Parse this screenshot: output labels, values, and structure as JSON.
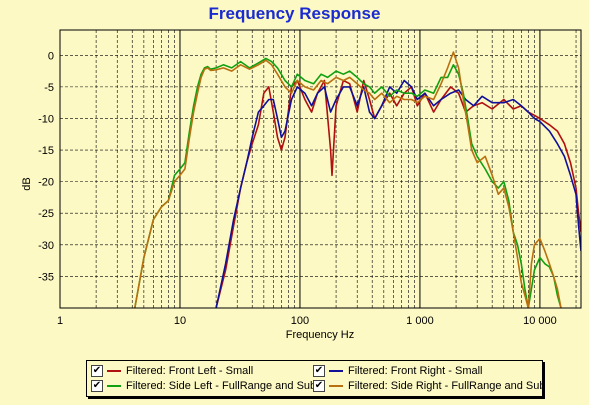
{
  "chart_data": {
    "type": "line",
    "title": "Frequency Response",
    "xlabel": "Frequency Hz",
    "ylabel": "dB",
    "xscale": "log",
    "xlim": [
      1,
      22000
    ],
    "ylim": [
      -40,
      4
    ],
    "xticks": [
      {
        "value": 1,
        "label": "1"
      },
      {
        "value": 10,
        "label": "10"
      },
      {
        "value": 100,
        "label": "100"
      },
      {
        "value": 1000,
        "label": "1 000"
      },
      {
        "value": 10000,
        "label": "10 000"
      }
    ],
    "yticks": [
      {
        "value": 0,
        "label": "0"
      },
      {
        "value": -5,
        "label": "-5"
      },
      {
        "value": -10,
        "label": "-10"
      },
      {
        "value": -15,
        "label": "-15"
      },
      {
        "value": -20,
        "label": "-20"
      },
      {
        "value": -25,
        "label": "-25"
      },
      {
        "value": -30,
        "label": "-30"
      },
      {
        "value": -35,
        "label": "-35"
      }
    ],
    "grid": true,
    "legend_position": "bottom",
    "series": [
      {
        "name": "Filtered: Front Left - Small",
        "color": "#b01010",
        "checked": true,
        "points": [
          [
            20,
            -40
          ],
          [
            24,
            -34
          ],
          [
            28,
            -27
          ],
          [
            32,
            -21
          ],
          [
            36,
            -17
          ],
          [
            40,
            -14
          ],
          [
            45,
            -11
          ],
          [
            50,
            -6
          ],
          [
            55,
            -5
          ],
          [
            60,
            -9
          ],
          [
            65,
            -13
          ],
          [
            70,
            -15
          ],
          [
            75,
            -13
          ],
          [
            85,
            -5
          ],
          [
            95,
            -4
          ],
          [
            110,
            -7
          ],
          [
            125,
            -9
          ],
          [
            140,
            -6
          ],
          [
            160,
            -4
          ],
          [
            180,
            -15
          ],
          [
            185,
            -19
          ],
          [
            200,
            -8
          ],
          [
            230,
            -4
          ],
          [
            260,
            -4.5
          ],
          [
            300,
            -9
          ],
          [
            340,
            -4
          ],
          [
            380,
            -7
          ],
          [
            420,
            -10
          ],
          [
            480,
            -8
          ],
          [
            560,
            -6
          ],
          [
            640,
            -8
          ],
          [
            740,
            -6
          ],
          [
            850,
            -5
          ],
          [
            950,
            -8
          ],
          [
            1100,
            -6
          ],
          [
            1300,
            -9
          ],
          [
            1500,
            -7
          ],
          [
            1800,
            -5
          ],
          [
            2100,
            -6
          ],
          [
            2400,
            -9
          ],
          [
            2800,
            -8
          ],
          [
            3300,
            -7.5
          ],
          [
            4000,
            -8.5
          ],
          [
            5000,
            -7
          ],
          [
            6000,
            -8.5
          ],
          [
            7000,
            -8
          ],
          [
            8000,
            -9
          ],
          [
            9000,
            -9.5
          ],
          [
            10000,
            -10
          ],
          [
            12000,
            -11
          ],
          [
            14000,
            -12
          ],
          [
            16000,
            -14
          ],
          [
            18000,
            -17
          ],
          [
            20000,
            -21
          ],
          [
            21000,
            -25
          ],
          [
            22000,
            -28
          ]
        ]
      },
      {
        "name": "Filtered: Front Right - Small",
        "color": "#10109a",
        "checked": true,
        "points": [
          [
            20,
            -40
          ],
          [
            24,
            -33
          ],
          [
            28,
            -26
          ],
          [
            32,
            -21
          ],
          [
            36,
            -17
          ],
          [
            40,
            -13
          ],
          [
            45,
            -9
          ],
          [
            50,
            -8
          ],
          [
            55,
            -7
          ],
          [
            60,
            -7
          ],
          [
            65,
            -10
          ],
          [
            70,
            -13
          ],
          [
            75,
            -12
          ],
          [
            85,
            -7
          ],
          [
            95,
            -5
          ],
          [
            110,
            -6
          ],
          [
            125,
            -8
          ],
          [
            140,
            -6
          ],
          [
            160,
            -5
          ],
          [
            180,
            -9
          ],
          [
            200,
            -7
          ],
          [
            230,
            -5
          ],
          [
            260,
            -5
          ],
          [
            300,
            -8
          ],
          [
            340,
            -5
          ],
          [
            380,
            -9
          ],
          [
            420,
            -10
          ],
          [
            480,
            -8
          ],
          [
            560,
            -5
          ],
          [
            640,
            -6
          ],
          [
            740,
            -4
          ],
          [
            850,
            -5
          ],
          [
            950,
            -7
          ],
          [
            1100,
            -6
          ],
          [
            1300,
            -8
          ],
          [
            1500,
            -7
          ],
          [
            1800,
            -6
          ],
          [
            2100,
            -5.5
          ],
          [
            2400,
            -7
          ],
          [
            2800,
            -8
          ],
          [
            3300,
            -6.5
          ],
          [
            4000,
            -7.5
          ],
          [
            5000,
            -7.5
          ],
          [
            6000,
            -7
          ],
          [
            7000,
            -8
          ],
          [
            8000,
            -9
          ],
          [
            9000,
            -10
          ],
          [
            10000,
            -10.5
          ],
          [
            12000,
            -12
          ],
          [
            14000,
            -14
          ],
          [
            16000,
            -16
          ],
          [
            18000,
            -19
          ],
          [
            20000,
            -22
          ],
          [
            21000,
            -27
          ],
          [
            22000,
            -31
          ]
        ]
      },
      {
        "name": "Filtered: Side Left - FullRange and Sub",
        "color": "#12a012",
        "checked": true,
        "points": [
          [
            4.2,
            -40
          ],
          [
            5,
            -32
          ],
          [
            6,
            -26
          ],
          [
            7,
            -24
          ],
          [
            8,
            -23
          ],
          [
            9,
            -19
          ],
          [
            10,
            -18
          ],
          [
            11,
            -17
          ],
          [
            12,
            -12
          ],
          [
            13,
            -8
          ],
          [
            14,
            -5
          ],
          [
            15,
            -3
          ],
          [
            16,
            -2
          ],
          [
            17,
            -1.8
          ],
          [
            18,
            -2.2
          ],
          [
            20,
            -2
          ],
          [
            23,
            -1.5
          ],
          [
            27,
            -2
          ],
          [
            32,
            -1
          ],
          [
            38,
            -2
          ],
          [
            45,
            -1.2
          ],
          [
            52,
            -0.5
          ],
          [
            58,
            -1
          ],
          [
            65,
            -2
          ],
          [
            75,
            -4
          ],
          [
            85,
            -5
          ],
          [
            95,
            -3
          ],
          [
            110,
            -4
          ],
          [
            130,
            -4.5
          ],
          [
            150,
            -3
          ],
          [
            170,
            -3.5
          ],
          [
            200,
            -2.5
          ],
          [
            230,
            -3
          ],
          [
            260,
            -2.5
          ],
          [
            300,
            -3.5
          ],
          [
            340,
            -4.5
          ],
          [
            380,
            -5
          ],
          [
            420,
            -6
          ],
          [
            480,
            -5
          ],
          [
            560,
            -6.5
          ],
          [
            640,
            -5.5
          ],
          [
            740,
            -6
          ],
          [
            850,
            -6
          ],
          [
            950,
            -6.5
          ],
          [
            1100,
            -5.5
          ],
          [
            1300,
            -6
          ],
          [
            1500,
            -3.5
          ],
          [
            1700,
            -3.5
          ],
          [
            1900,
            -1.5
          ],
          [
            2100,
            -3
          ],
          [
            2300,
            -6
          ],
          [
            2500,
            -10
          ],
          [
            2700,
            -14
          ],
          [
            3000,
            -16
          ],
          [
            3500,
            -18
          ],
          [
            4000,
            -20
          ],
          [
            4500,
            -21
          ],
          [
            5000,
            -20
          ],
          [
            5500,
            -23
          ],
          [
            6000,
            -28
          ],
          [
            6500,
            -30
          ],
          [
            7000,
            -33
          ],
          [
            7500,
            -37
          ],
          [
            8000,
            -40
          ],
          [
            8500,
            -37
          ],
          [
            9000,
            -34
          ],
          [
            10000,
            -32
          ],
          [
            11000,
            -33
          ],
          [
            12000,
            -33.5
          ],
          [
            13000,
            -35
          ],
          [
            14000,
            -38
          ],
          [
            15000,
            -40
          ]
        ]
      },
      {
        "name": "Filtered: Side Right - FullRange and Sub",
        "color": "#b87010",
        "checked": true,
        "points": [
          [
            4.2,
            -40
          ],
          [
            5,
            -32
          ],
          [
            6,
            -26
          ],
          [
            7,
            -24
          ],
          [
            8,
            -23
          ],
          [
            9,
            -20
          ],
          [
            10,
            -19
          ],
          [
            11,
            -18
          ],
          [
            12,
            -13
          ],
          [
            13,
            -9
          ],
          [
            14,
            -6
          ],
          [
            15,
            -3.5
          ],
          [
            16,
            -2.2
          ],
          [
            17,
            -2
          ],
          [
            18,
            -2.4
          ],
          [
            20,
            -2.3
          ],
          [
            23,
            -2
          ],
          [
            27,
            -2.5
          ],
          [
            32,
            -1.5
          ],
          [
            38,
            -2.2
          ],
          [
            45,
            -1.5
          ],
          [
            52,
            -0.8
          ],
          [
            58,
            -1.5
          ],
          [
            65,
            -3
          ],
          [
            75,
            -5
          ],
          [
            85,
            -6
          ],
          [
            95,
            -4
          ],
          [
            110,
            -5
          ],
          [
            130,
            -5.5
          ],
          [
            150,
            -4
          ],
          [
            170,
            -4.5
          ],
          [
            200,
            -3.5
          ],
          [
            230,
            -4
          ],
          [
            260,
            -3.5
          ],
          [
            300,
            -4.5
          ],
          [
            340,
            -5.5
          ],
          [
            380,
            -6
          ],
          [
            420,
            -7
          ],
          [
            480,
            -6
          ],
          [
            560,
            -7.5
          ],
          [
            640,
            -6.5
          ],
          [
            740,
            -7
          ],
          [
            850,
            -7
          ],
          [
            950,
            -7.5
          ],
          [
            1100,
            -6.5
          ],
          [
            1300,
            -7
          ],
          [
            1500,
            -4.5
          ],
          [
            1700,
            -2
          ],
          [
            1900,
            0.5
          ],
          [
            2100,
            -2
          ],
          [
            2300,
            -7
          ],
          [
            2500,
            -11
          ],
          [
            2700,
            -15
          ],
          [
            3000,
            -17
          ],
          [
            3500,
            -16
          ],
          [
            4000,
            -19
          ],
          [
            4500,
            -22
          ],
          [
            5000,
            -21
          ],
          [
            5500,
            -24
          ],
          [
            6000,
            -28
          ],
          [
            6500,
            -32
          ],
          [
            7000,
            -36
          ],
          [
            7500,
            -38
          ],
          [
            8000,
            -40
          ],
          [
            8500,
            -33
          ],
          [
            9000,
            -30
          ],
          [
            10000,
            -29
          ],
          [
            11000,
            -31
          ],
          [
            12000,
            -33
          ],
          [
            13000,
            -35
          ],
          [
            14000,
            -37
          ],
          [
            15000,
            -40
          ]
        ]
      }
    ]
  }
}
